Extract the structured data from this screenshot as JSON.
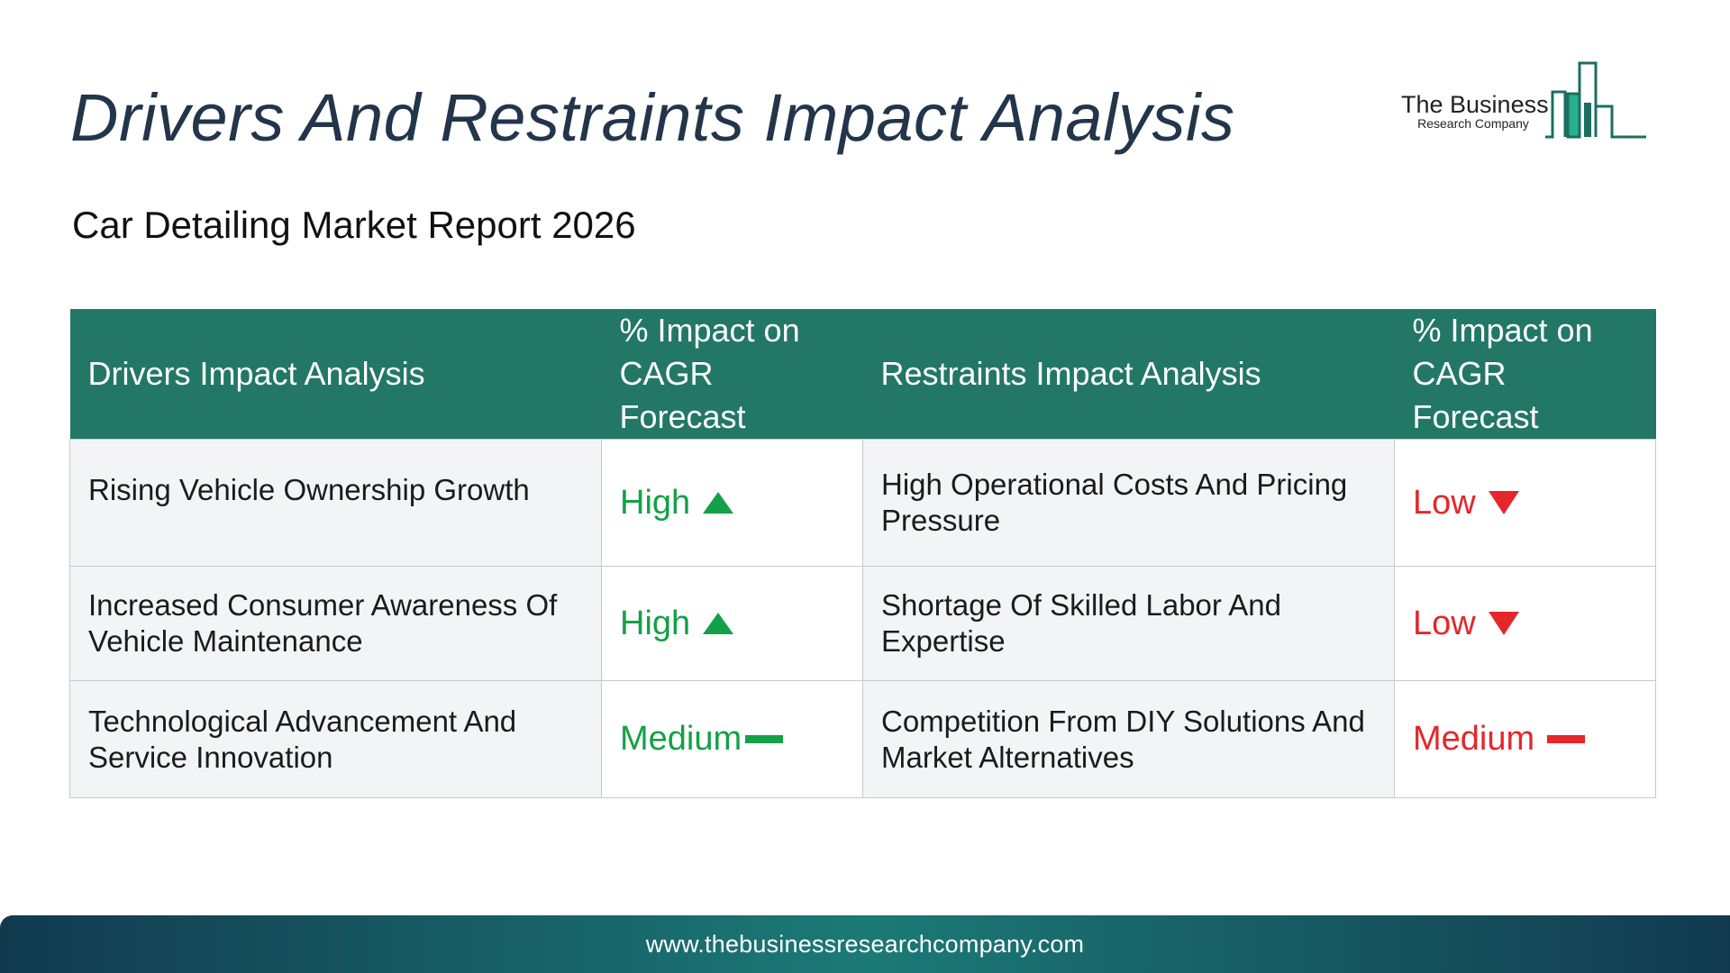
{
  "header": {
    "title": "Drivers And Restraints Impact Analysis",
    "subtitle": "Car Detailing Market Report 2026"
  },
  "logo": {
    "line1": "The Business",
    "line2": "Research Company",
    "icon": "bar-chart-buildings-icon",
    "color": "#237766"
  },
  "table": {
    "headers": {
      "drivers": "Drivers Impact Analysis",
      "drivers_impact": "% Impact on CAGR Forecast",
      "restraints": "Restraints Impact Analysis",
      "restraints_impact": "% Impact on CAGR Forecast"
    },
    "header_color": "#237766",
    "rows": [
      {
        "driver": "Rising Vehicle Ownership Growth",
        "driver_impact": "High",
        "driver_icon": "up-arrow-icon",
        "restraint": "High Operational Costs And Pricing Pressure",
        "restraint_impact": "Low",
        "restraint_icon": "down-arrow-icon"
      },
      {
        "driver": "Increased Consumer Awareness Of Vehicle Maintenance",
        "driver_impact": "High",
        "driver_icon": "up-arrow-icon",
        "restraint": "Shortage Of Skilled Labor And Expertise",
        "restraint_impact": "Low",
        "restraint_icon": "down-arrow-icon"
      },
      {
        "driver": "Technological Advancement And Service Innovation",
        "driver_impact": "Medium",
        "driver_icon": "dash-icon",
        "restraint": "Competition From DIY Solutions And Market Alternatives",
        "restraint_impact": "Medium",
        "restraint_icon": "dash-icon"
      }
    ],
    "positive_color": "#14a046",
    "negative_color": "#e5262b"
  },
  "footer": {
    "url": "www.thebusinessresearchcompany.com"
  }
}
